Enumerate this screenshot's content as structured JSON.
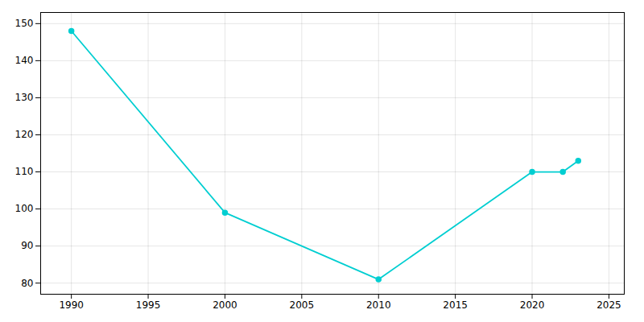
{
  "chart_data": {
    "type": "line",
    "x": [
      1990,
      2000,
      2010,
      2020,
      2022,
      2023
    ],
    "values": [
      148,
      99,
      81,
      110,
      110,
      113
    ],
    "color": "#00CED1",
    "marker": "circle",
    "xlim": [
      1988,
      2026
    ],
    "ylim": [
      77,
      153
    ],
    "xticks": [
      1990,
      1995,
      2000,
      2005,
      2010,
      2015,
      2020,
      2025
    ],
    "yticks": [
      80,
      90,
      100,
      110,
      120,
      130,
      140,
      150
    ],
    "grid": true
  }
}
